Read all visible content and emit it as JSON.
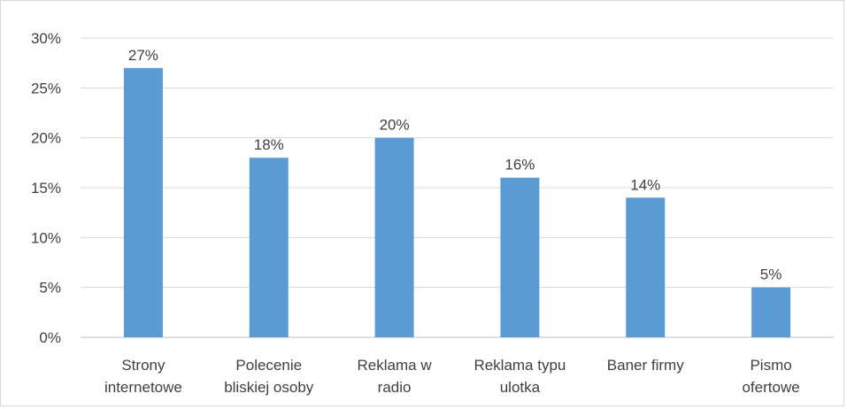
{
  "chart_data": {
    "type": "bar",
    "title": "",
    "xlabel": "",
    "ylabel": "",
    "ylim": [
      0,
      30
    ],
    "y_ticks": [
      0,
      5,
      10,
      15,
      20,
      25,
      30
    ],
    "y_tick_labels": [
      "0%",
      "5%",
      "10%",
      "15%",
      "20%",
      "25%",
      "30%"
    ],
    "grid": true,
    "legend": "none",
    "categories": [
      [
        "Strony",
        "internetowe"
      ],
      [
        "Polecenie",
        "bliskiej osoby"
      ],
      [
        "Reklama w",
        "radio"
      ],
      [
        "Reklama typu",
        "ulotka"
      ],
      [
        "Baner firmy"
      ],
      [
        "Pismo",
        "ofertowe"
      ]
    ],
    "values": [
      27,
      18,
      20,
      16,
      14,
      5
    ],
    "data_labels": [
      "27%",
      "18%",
      "20%",
      "16%",
      "14%",
      "5%"
    ],
    "colors": {
      "bar": "#5b9bd5",
      "grid": "#d9d9d9",
      "axis": "#bfbfbf",
      "text": "#404040"
    }
  }
}
